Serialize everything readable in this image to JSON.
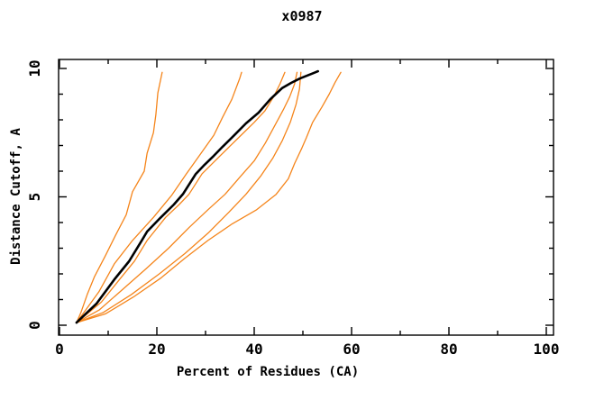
{
  "title": "x0987",
  "colors": {
    "background": "#ffffff",
    "axis": "#000000",
    "orange_series": "#f5851b",
    "black_series": "#000000"
  },
  "chart_data": {
    "type": "line",
    "title": "x0987",
    "xlabel": "Percent of Residues (CA)",
    "ylabel": "Distance Cutoff, A",
    "xlim": [
      0,
      101.5
    ],
    "ylim": [
      -0.4,
      10.35
    ],
    "grid": false,
    "legend": "none",
    "x_major_ticks": [
      0,
      20,
      40,
      60,
      80,
      100
    ],
    "x_minor_ticks": [
      10,
      30,
      50,
      70,
      90
    ],
    "y_major_ticks": [
      0,
      5,
      10
    ],
    "y_minor_ticks": [
      1,
      2,
      3,
      4,
      6,
      7,
      8,
      9
    ],
    "series": [
      {
        "name": "orange-curve-1",
        "color": "#f5851b",
        "width": 1.3,
        "points": [
          [
            3.5,
            0.1
          ],
          [
            4.4,
            0.5
          ],
          [
            5.7,
            1.2
          ],
          [
            7.2,
            1.9
          ],
          [
            9.4,
            2.7
          ],
          [
            11.5,
            3.5
          ],
          [
            13.7,
            4.3
          ],
          [
            15.0,
            5.2
          ],
          [
            17.4,
            6.0
          ],
          [
            18.0,
            6.7
          ],
          [
            19.3,
            7.5
          ],
          [
            19.8,
            8.2
          ],
          [
            20.2,
            9.05
          ],
          [
            21.1,
            9.85
          ]
        ]
      },
      {
        "name": "orange-curve-2",
        "color": "#f5851b",
        "width": 1.3,
        "points": [
          [
            3.5,
            0.1
          ],
          [
            8.1,
            1.3
          ],
          [
            11.3,
            2.4
          ],
          [
            15.0,
            3.3
          ],
          [
            19.3,
            4.2
          ],
          [
            23.0,
            5.05
          ],
          [
            26.1,
            5.9
          ],
          [
            29.1,
            6.7
          ],
          [
            31.7,
            7.4
          ],
          [
            33.5,
            8.1
          ],
          [
            35.4,
            8.8
          ],
          [
            37.0,
            9.6
          ],
          [
            37.4,
            9.85
          ]
        ]
      },
      {
        "name": "orange-curve-3",
        "color": "#f5851b",
        "width": 1.3,
        "points": [
          [
            3.5,
            0.1
          ],
          [
            8.6,
            0.9
          ],
          [
            12.4,
            1.8
          ],
          [
            15.4,
            2.5
          ],
          [
            18.0,
            3.3
          ],
          [
            21.8,
            4.2
          ],
          [
            24.6,
            4.7
          ],
          [
            26.6,
            5.1
          ],
          [
            29.3,
            5.9
          ],
          [
            33.0,
            6.6
          ],
          [
            37.3,
            7.4
          ],
          [
            40.0,
            7.9
          ],
          [
            42.2,
            8.35
          ],
          [
            44.0,
            8.9
          ],
          [
            45.3,
            9.4
          ],
          [
            46.3,
            9.85
          ]
        ]
      },
      {
        "name": "orange-curve-4",
        "color": "#f5851b",
        "width": 1.3,
        "points": [
          [
            3.5,
            0.1
          ],
          [
            8.2,
            0.6
          ],
          [
            13.0,
            1.4
          ],
          [
            17.8,
            2.2
          ],
          [
            22.4,
            3.0
          ],
          [
            26.6,
            3.8
          ],
          [
            30.5,
            4.5
          ],
          [
            34.0,
            5.1
          ],
          [
            37.2,
            5.8
          ],
          [
            40.0,
            6.4
          ],
          [
            42.3,
            7.1
          ],
          [
            44.3,
            7.8
          ],
          [
            46.0,
            8.4
          ],
          [
            47.3,
            8.9
          ],
          [
            48.3,
            9.4
          ],
          [
            48.8,
            9.85
          ]
        ]
      },
      {
        "name": "orange-curve-5",
        "color": "#f5851b",
        "width": 1.3,
        "points": [
          [
            3.5,
            0.1
          ],
          [
            9.0,
            0.5
          ],
          [
            14.8,
            1.2
          ],
          [
            20.5,
            2.0
          ],
          [
            25.8,
            2.8
          ],
          [
            30.6,
            3.6
          ],
          [
            34.8,
            4.4
          ],
          [
            38.3,
            5.1
          ],
          [
            41.3,
            5.8
          ],
          [
            43.8,
            6.5
          ],
          [
            45.8,
            7.2
          ],
          [
            47.4,
            7.9
          ],
          [
            48.6,
            8.6
          ],
          [
            49.3,
            9.2
          ],
          [
            49.6,
            9.85
          ]
        ]
      },
      {
        "name": "orange-curve-6",
        "color": "#f5851b",
        "width": 1.3,
        "points": [
          [
            3.5,
            0.1
          ],
          [
            9.5,
            0.45
          ],
          [
            15.2,
            1.1
          ],
          [
            20.9,
            1.85
          ],
          [
            25.7,
            2.6
          ],
          [
            30.5,
            3.3
          ],
          [
            35.5,
            3.95
          ],
          [
            40.5,
            4.5
          ],
          [
            44.5,
            5.1
          ],
          [
            47.0,
            5.7
          ],
          [
            48.3,
            6.3
          ],
          [
            49.8,
            6.9
          ],
          [
            50.7,
            7.3
          ],
          [
            52.0,
            7.9
          ],
          [
            53.9,
            8.5
          ],
          [
            55.4,
            9.0
          ],
          [
            56.6,
            9.45
          ],
          [
            57.8,
            9.85
          ]
        ]
      },
      {
        "name": "black-curve",
        "color": "#000000",
        "width": 2.6,
        "points": [
          [
            3.5,
            0.1
          ],
          [
            7.6,
            0.84
          ],
          [
            11.3,
            1.79
          ],
          [
            14.3,
            2.49
          ],
          [
            16.9,
            3.3
          ],
          [
            18.0,
            3.65
          ],
          [
            20.7,
            4.18
          ],
          [
            23.5,
            4.7
          ],
          [
            25.4,
            5.12
          ],
          [
            28.0,
            5.89
          ],
          [
            29.8,
            6.25
          ],
          [
            31.7,
            6.6
          ],
          [
            33.5,
            6.95
          ],
          [
            35.9,
            7.4
          ],
          [
            38.3,
            7.86
          ],
          [
            40.9,
            8.28
          ],
          [
            43.3,
            8.8
          ],
          [
            45.7,
            9.23
          ],
          [
            47.6,
            9.44
          ],
          [
            49.4,
            9.61
          ],
          [
            52.2,
            9.82
          ],
          [
            53.1,
            9.89
          ]
        ]
      }
    ]
  }
}
